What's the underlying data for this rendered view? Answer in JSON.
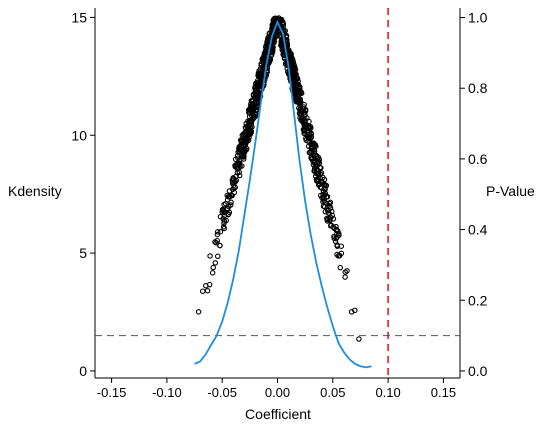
{
  "chart_data": {
    "type": "scatter",
    "title": "",
    "xlabel": "Coefficient",
    "ylabel_left": "Kdensity",
    "ylabel_right": "P-Value",
    "xlim": [
      -0.165,
      0.165
    ],
    "ylim_left": [
      -0.3,
      15.4
    ],
    "ylim_right": [
      -0.02,
      1.027
    ],
    "x_ticks": [
      {
        "value": -0.15,
        "label": "-0.15"
      },
      {
        "value": -0.1,
        "label": "-0.10"
      },
      {
        "value": -0.05,
        "label": "-0.05"
      },
      {
        "value": 0.0,
        "label": "0.00"
      },
      {
        "value": 0.05,
        "label": "0.05"
      },
      {
        "value": 0.1,
        "label": "0.10"
      },
      {
        "value": 0.15,
        "label": "0.15"
      }
    ],
    "y_left_ticks": [
      {
        "value": 0,
        "label": "0"
      },
      {
        "value": 5,
        "label": "5"
      },
      {
        "value": 10,
        "label": "10"
      },
      {
        "value": 15,
        "label": "15"
      }
    ],
    "y_right_ticks": [
      {
        "value": 0.0,
        "label": "0.0"
      },
      {
        "value": 0.2,
        "label": "0.2"
      },
      {
        "value": 0.4,
        "label": "0.4"
      },
      {
        "value": 0.6,
        "label": "0.6"
      },
      {
        "value": 0.8,
        "label": "0.8"
      },
      {
        "value": 1.0,
        "label": "1.0"
      }
    ],
    "grid": false,
    "legend": "none",
    "density_curve": {
      "axis": "left",
      "color": "#1a8fe0",
      "points": [
        [
          -0.075,
          0.3
        ],
        [
          -0.07,
          0.4
        ],
        [
          -0.065,
          0.7
        ],
        [
          -0.06,
          1.1
        ],
        [
          -0.055,
          1.5
        ],
        [
          -0.05,
          2.1
        ],
        [
          -0.045,
          2.9
        ],
        [
          -0.04,
          3.9
        ],
        [
          -0.035,
          5.1
        ],
        [
          -0.03,
          6.6
        ],
        [
          -0.025,
          8.1
        ],
        [
          -0.02,
          9.7
        ],
        [
          -0.015,
          11.4
        ],
        [
          -0.01,
          13.0
        ],
        [
          -0.005,
          14.2
        ],
        [
          0.0,
          14.8
        ],
        [
          0.005,
          14.3
        ],
        [
          0.01,
          12.9
        ],
        [
          0.015,
          10.9
        ],
        [
          0.02,
          8.9
        ],
        [
          0.025,
          7.2
        ],
        [
          0.03,
          5.8
        ],
        [
          0.035,
          4.6
        ],
        [
          0.04,
          3.6
        ],
        [
          0.045,
          2.7
        ],
        [
          0.05,
          1.9
        ],
        [
          0.055,
          1.2
        ],
        [
          0.06,
          0.8
        ],
        [
          0.065,
          0.5
        ],
        [
          0.07,
          0.3
        ],
        [
          0.075,
          0.2
        ],
        [
          0.08,
          0.15
        ],
        [
          0.085,
          0.2
        ]
      ]
    },
    "p_value_scatter": {
      "axis": "right",
      "marker": "hollow-circle",
      "color": "#000000",
      "n_points": 900,
      "x_range": [
        -0.075,
        0.085
      ],
      "shape": "p-value approaches 1.0 at coefficient 0 and falls roughly linearly toward 0 as |coefficient| grows, forming an inverted-V band"
    },
    "reference_lines": [
      {
        "orientation": "vertical",
        "axis": "x",
        "value": 0.1,
        "style": "dashed",
        "color": "#e31a1c"
      },
      {
        "orientation": "horizontal",
        "axis": "right",
        "value": 0.1,
        "style": "dashed",
        "color": "#555555"
      }
    ]
  }
}
